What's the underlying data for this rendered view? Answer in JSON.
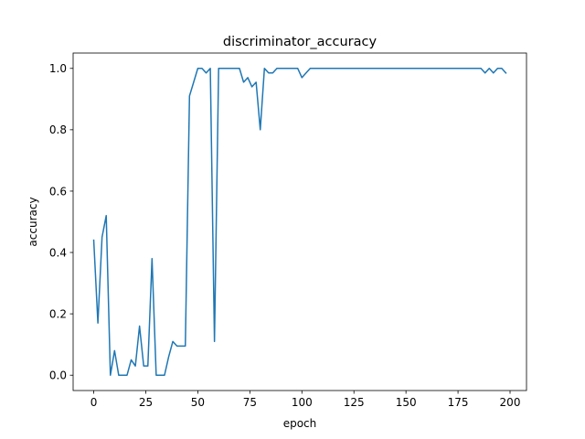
{
  "chart_data": {
    "type": "line",
    "title": "discriminator_accuracy",
    "xlabel": "epoch",
    "ylabel": "accuracy",
    "xlim": [
      -9.9,
      207.9
    ],
    "ylim": [
      -0.05,
      1.05
    ],
    "xticks": [
      0,
      25,
      50,
      75,
      100,
      125,
      150,
      175,
      200
    ],
    "yticks": [
      0.0,
      0.2,
      0.4,
      0.6,
      0.8,
      1.0
    ],
    "grid": false,
    "series": [
      {
        "color": "#1f77b4",
        "x": [
          0,
          2,
          4,
          6,
          8,
          10,
          12,
          14,
          16,
          18,
          20,
          22,
          24,
          26,
          28,
          30,
          32,
          34,
          36,
          38,
          40,
          42,
          44,
          46,
          48,
          50,
          52,
          54,
          56,
          58,
          60,
          62,
          64,
          66,
          68,
          70,
          72,
          74,
          76,
          78,
          80,
          82,
          84,
          86,
          88,
          90,
          92,
          94,
          96,
          98,
          100,
          102,
          104,
          106,
          108,
          110,
          112,
          114,
          116,
          118,
          120,
          122,
          124,
          126,
          128,
          130,
          132,
          134,
          136,
          138,
          140,
          142,
          144,
          146,
          148,
          150,
          152,
          154,
          156,
          158,
          160,
          162,
          164,
          166,
          168,
          170,
          172,
          174,
          176,
          178,
          180,
          182,
          184,
          186,
          188,
          190,
          192,
          194,
          196,
          198
        ],
        "y": [
          0.44,
          0.17,
          0.45,
          0.52,
          0.0,
          0.08,
          0.0,
          0.0,
          0.0,
          0.05,
          0.03,
          0.16,
          0.03,
          0.03,
          0.38,
          0.0,
          0.0,
          0.0,
          0.06,
          0.11,
          0.095,
          0.095,
          0.095,
          0.91,
          0.955,
          1.0,
          1.0,
          0.985,
          1.0,
          0.11,
          1.0,
          1.0,
          1.0,
          1.0,
          1.0,
          1.0,
          0.955,
          0.97,
          0.94,
          0.955,
          0.8,
          1.0,
          0.985,
          0.985,
          1.0,
          1.0,
          1.0,
          1.0,
          1.0,
          1.0,
          0.97,
          0.985,
          1.0,
          1.0,
          1.0,
          1.0,
          1.0,
          1.0,
          1.0,
          1.0,
          1.0,
          1.0,
          1.0,
          1.0,
          1.0,
          1.0,
          1.0,
          1.0,
          1.0,
          1.0,
          1.0,
          1.0,
          1.0,
          1.0,
          1.0,
          1.0,
          1.0,
          1.0,
          1.0,
          1.0,
          1.0,
          1.0,
          1.0,
          1.0,
          1.0,
          1.0,
          1.0,
          1.0,
          1.0,
          1.0,
          1.0,
          1.0,
          1.0,
          1.0,
          0.985,
          1.0,
          0.985,
          1.0,
          1.0,
          0.985
        ]
      }
    ]
  }
}
